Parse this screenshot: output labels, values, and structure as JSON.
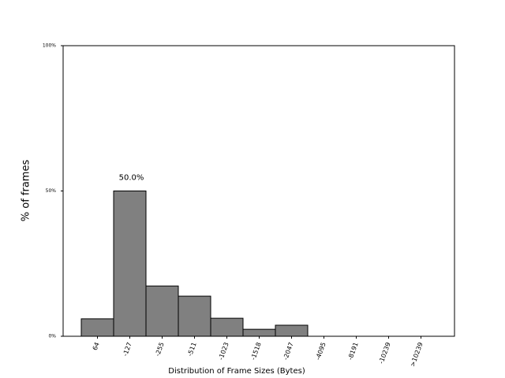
{
  "chart_data": {
    "type": "bar",
    "x_label": "Distribution of Frame Sizes (Bytes)",
    "y_label": "% of frames",
    "categories": [
      "64",
      "-127",
      "-255",
      "-511",
      "-1023",
      "-1518",
      "-2047",
      "-4095",
      "-8191",
      "-10239",
      ">10239"
    ],
    "values": [
      6.0,
      50.0,
      17.3,
      13.8,
      6.2,
      2.4,
      3.8,
      0,
      0,
      0,
      0
    ],
    "value_labels": [
      null,
      "50.0%",
      null,
      null,
      null,
      null,
      null,
      null,
      null,
      null,
      null
    ],
    "color": "#808080",
    "ylim": [
      0,
      100
    ],
    "yticks": [
      {
        "value": 0,
        "label": "0%"
      },
      {
        "value": 50,
        "label": "50%"
      },
      {
        "value": 100,
        "label": "100%"
      }
    ]
  }
}
